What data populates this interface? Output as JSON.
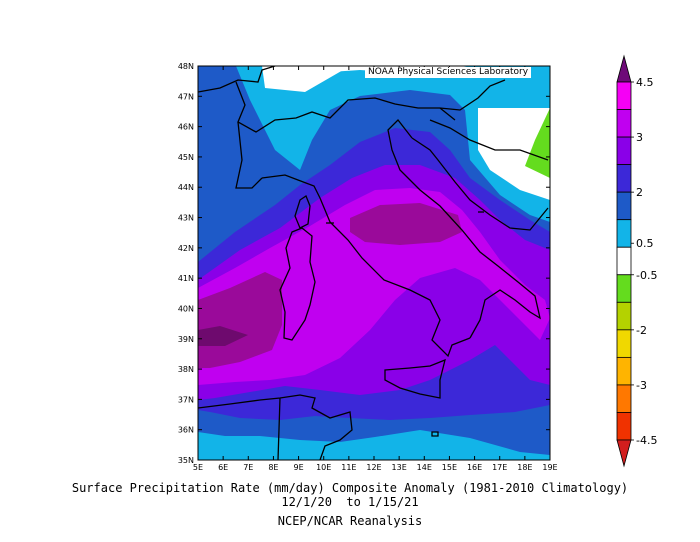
{
  "credit": "NOAA Physical Sciences Laboratory",
  "caption": {
    "line1": "Surface Precipitation Rate (mm/day) Composite Anomaly (1981-2010 Climatology)",
    "line2": "12/1/20  to 1/15/21",
    "line3": "NCEP/NCAR Reanalysis"
  },
  "axes": {
    "lon_labels": [
      "5E",
      "6E",
      "7E",
      "8E",
      "9E",
      "10E",
      "11E",
      "12E",
      "13E",
      "14E",
      "15E",
      "16E",
      "17E",
      "18E",
      "19E"
    ],
    "lat_labels": [
      "48N",
      "47N",
      "46N",
      "45N",
      "44N",
      "43N",
      "42N",
      "41N",
      "40N",
      "39N",
      "38N",
      "37N",
      "36N",
      "35N"
    ],
    "lon_range": [
      5,
      19
    ],
    "lat_range": [
      35,
      48
    ]
  },
  "colorbar": {
    "labels": [
      "4.5",
      "3",
      "2",
      "0.5",
      "-0.5",
      "-2",
      "-3",
      "-4.5"
    ],
    "colors": [
      "#f500f5",
      "#c000f0",
      "#8a00e8",
      "#3c28d8",
      "#1e5ac8",
      "#12b4e8",
      "#ffffff",
      "#64dc1e",
      "#b4d200",
      "#f0d800",
      "#ffb400",
      "#ff7800",
      "#f03200"
    ],
    "top_color": "#6e0a78",
    "bottom_color": "#d21e1e"
  },
  "contour_colors": {
    "c0": "#12b4e8",
    "c1": "#1e5ac8",
    "c2": "#3c28d8",
    "c3": "#8a00e8",
    "c4": "#c000f0",
    "c5": "#9a0a9a",
    "c6": "#6e0a6e",
    "neg": "#64dc1e"
  }
}
